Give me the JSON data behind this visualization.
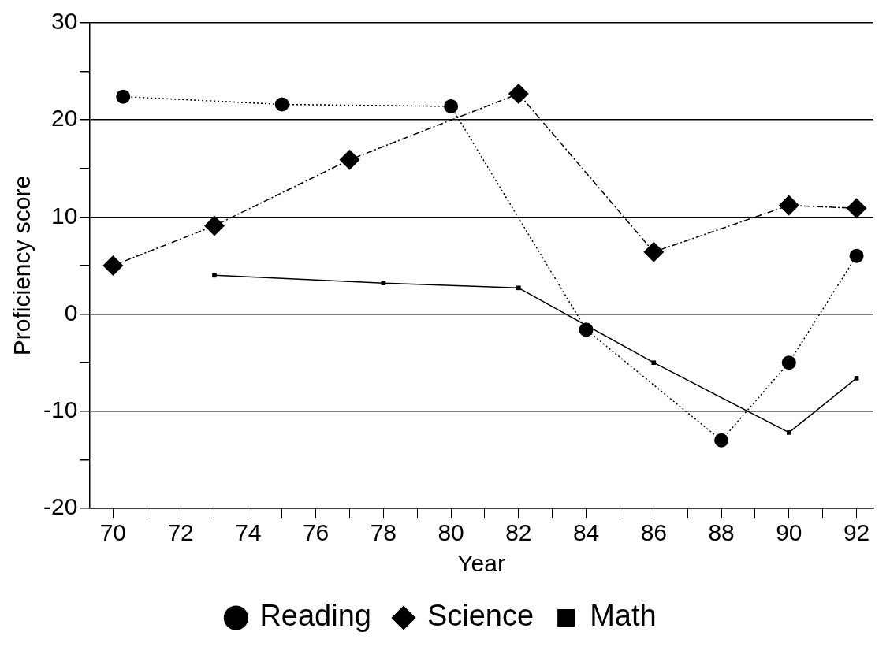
{
  "chart_data": {
    "type": "line",
    "xlabel": "Year",
    "ylabel": "Proficiency score",
    "xlim": [
      69.3,
      92.5
    ],
    "xticks": [
      70,
      {
        "value": 71,
        "label": null
      },
      72,
      {
        "value": 73,
        "label": null
      },
      74,
      {
        "value": 75,
        "label": null
      },
      76,
      {
        "value": 77,
        "label": null
      },
      78,
      {
        "value": 79,
        "label": null
      },
      80,
      {
        "value": 81,
        "label": null
      },
      82,
      {
        "value": 83,
        "label": null
      },
      84,
      {
        "value": 85,
        "label": null
      },
      86,
      {
        "value": 87,
        "label": null
      },
      88,
      {
        "value": 89,
        "label": null
      },
      90,
      {
        "value": 91,
        "label": null
      },
      92
    ],
    "ylim": [
      -20,
      30
    ],
    "yticks": [
      -20,
      {
        "value": -15,
        "label": null
      },
      -10,
      {
        "value": -5,
        "label": null
      },
      0,
      {
        "value": 5,
        "label": null
      },
      10,
      {
        "value": 15,
        "label": null
      },
      20,
      {
        "value": 25,
        "label": null
      },
      30
    ],
    "grid": "y",
    "legend": "bottom",
    "series": [
      {
        "name": "Reading",
        "color": "#000000",
        "marker": "circle",
        "line_style": "dotted",
        "x": [
          70.3,
          75,
          80,
          84,
          88,
          90,
          92
        ],
        "values": [
          22.4,
          21.6,
          21.4,
          -1.6,
          -13,
          -5,
          6
        ]
      },
      {
        "name": "Science",
        "color": "#000000",
        "marker": "diamond",
        "line_style": "dashed",
        "x": [
          70,
          73,
          77,
          82,
          86,
          90,
          92
        ],
        "values": [
          5,
          9.1,
          15.9,
          22.7,
          6.4,
          11.2,
          10.9
        ]
      },
      {
        "name": "Math",
        "color": "#000000",
        "marker": "square",
        "line_style": "solid",
        "x": [
          73,
          78,
          82,
          86,
          90,
          92
        ],
        "values": [
          4,
          3.2,
          2.7,
          -5,
          -12.2,
          -6.6
        ]
      }
    ]
  }
}
